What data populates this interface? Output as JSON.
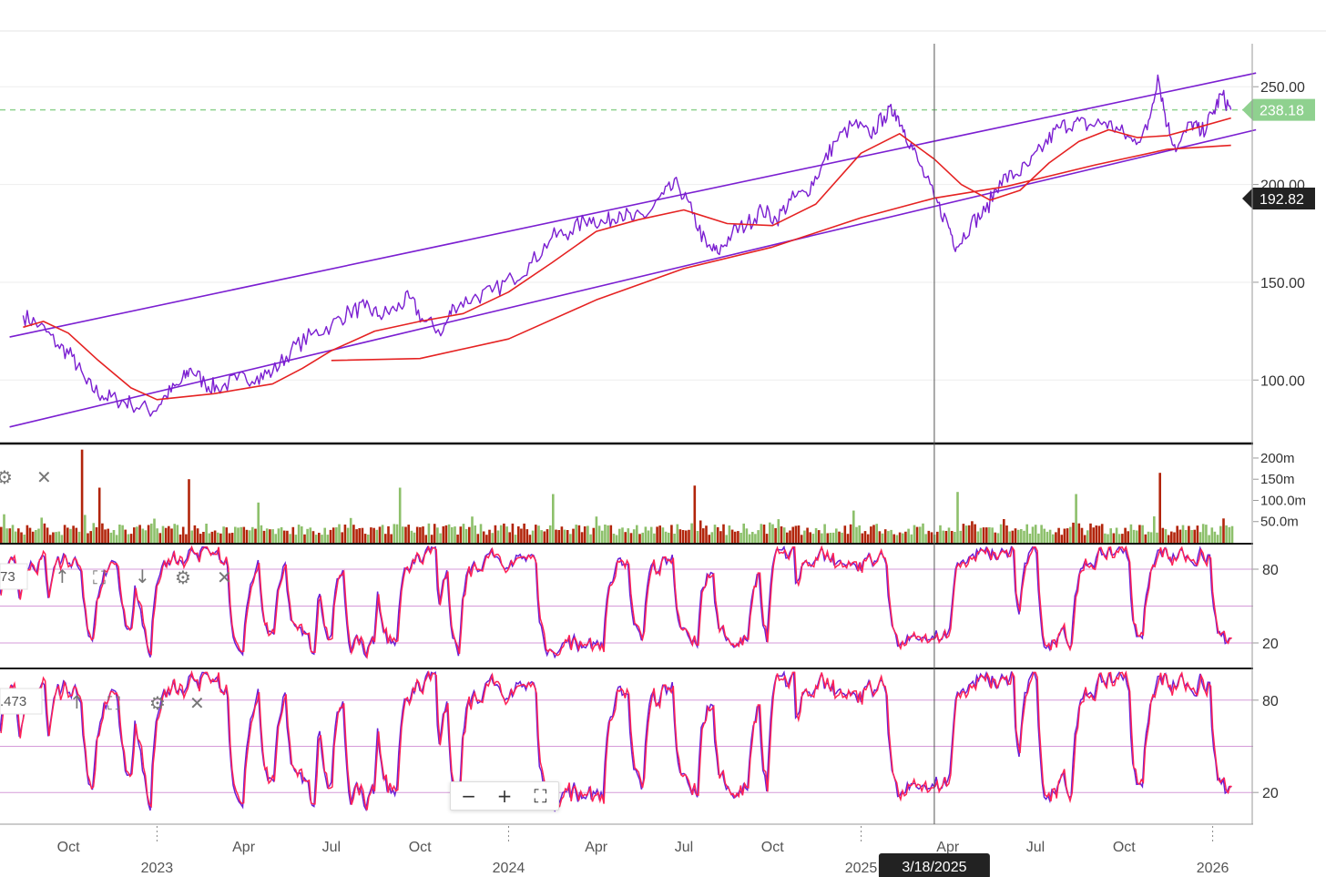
{
  "chart_data": [
    {
      "type": "line",
      "panel": "price",
      "series": [
        {
          "role": "price",
          "color": "#7b1fd1",
          "points": [
            [
              "2022-08-15",
              133
            ],
            [
              "2022-09-01",
              128
            ],
            [
              "2022-09-20",
              118
            ],
            [
              "2022-10-05",
              112
            ],
            [
              "2022-10-20",
              98
            ],
            [
              "2022-11-05",
              92
            ],
            [
              "2022-11-20",
              90
            ],
            [
              "2022-12-05",
              88
            ],
            [
              "2022-12-28",
              84
            ],
            [
              "2023-01-10",
              92
            ],
            [
              "2023-01-25",
              98
            ],
            [
              "2023-02-05",
              106
            ],
            [
              "2023-02-20",
              98
            ],
            [
              "2023-03-05",
              96
            ],
            [
              "2023-03-25",
              100
            ],
            [
              "2023-04-15",
              102
            ],
            [
              "2023-05-01",
              104
            ],
            [
              "2023-05-20",
              115
            ],
            [
              "2023-06-10",
              123
            ],
            [
              "2023-07-01",
              128
            ],
            [
              "2023-07-20",
              135
            ],
            [
              "2023-08-05",
              137
            ],
            [
              "2023-08-20",
              133
            ],
            [
              "2023-09-05",
              136
            ],
            [
              "2023-09-20",
              142
            ],
            [
              "2023-10-05",
              130
            ],
            [
              "2023-10-25",
              125
            ],
            [
              "2023-11-05",
              138
            ],
            [
              "2023-11-25",
              142
            ],
            [
              "2023-12-15",
              145
            ],
            [
              "2024-01-05",
              152
            ],
            [
              "2024-01-25",
              160
            ],
            [
              "2024-02-15",
              173
            ],
            [
              "2024-03-05",
              176
            ],
            [
              "2024-03-25",
              183
            ],
            [
              "2024-04-10",
              180
            ],
            [
              "2024-04-25",
              186
            ],
            [
              "2024-05-10",
              182
            ],
            [
              "2024-05-25",
              185
            ],
            [
              "2024-06-10",
              195
            ],
            [
              "2024-06-25",
              200
            ],
            [
              "2024-07-10",
              185
            ],
            [
              "2024-07-25",
              168
            ],
            [
              "2024-08-05",
              165
            ],
            [
              "2024-08-20",
              175
            ],
            [
              "2024-09-05",
              180
            ],
            [
              "2024-09-20",
              187
            ],
            [
              "2024-10-05",
              182
            ],
            [
              "2024-10-20",
              192
            ],
            [
              "2024-11-05",
              196
            ],
            [
              "2024-11-20",
              208
            ],
            [
              "2024-12-05",
              222
            ],
            [
              "2024-12-25",
              231
            ],
            [
              "2025-01-10",
              225
            ],
            [
              "2025-01-25",
              235
            ],
            [
              "2025-02-05",
              238
            ],
            [
              "2025-02-15",
              228
            ],
            [
              "2025-03-01",
              212
            ],
            [
              "2025-03-18",
              193
            ],
            [
              "2025-04-01",
              180
            ],
            [
              "2025-04-10",
              168
            ],
            [
              "2025-04-25",
              180
            ],
            [
              "2025-05-10",
              186
            ],
            [
              "2025-05-25",
              202
            ],
            [
              "2025-06-10",
              205
            ],
            [
              "2025-06-25",
              210
            ],
            [
              "2025-07-10",
              220
            ],
            [
              "2025-07-25",
              229
            ],
            [
              "2025-08-10",
              232
            ],
            [
              "2025-08-25",
              230
            ],
            [
              "2025-09-10",
              232
            ],
            [
              "2025-09-25",
              228
            ],
            [
              "2025-10-10",
              222
            ],
            [
              "2025-10-25",
              228
            ],
            [
              "2025-11-05",
              256
            ],
            [
              "2025-11-15",
              230
            ],
            [
              "2025-11-25",
              218
            ],
            [
              "2025-12-10",
              232
            ],
            [
              "2025-12-20",
              226
            ],
            [
              "2026-01-01",
              236
            ],
            [
              "2026-01-10",
              246
            ],
            [
              "2026-01-20",
              238.18
            ]
          ]
        },
        {
          "role": "ma-short",
          "color": "#e52222",
          "points": [
            [
              "2022-08-15",
              127
            ],
            [
              "2022-09-05",
              130
            ],
            [
              "2022-10-01",
              124
            ],
            [
              "2022-11-01",
              110
            ],
            [
              "2022-12-05",
              96
            ],
            [
              "2023-01-01",
              90
            ],
            [
              "2023-03-01",
              93
            ],
            [
              "2023-05-01",
              98
            ],
            [
              "2023-06-01",
              106
            ],
            [
              "2023-07-01",
              115
            ],
            [
              "2023-08-15",
              125
            ],
            [
              "2023-10-01",
              130
            ],
            [
              "2023-11-15",
              134
            ],
            [
              "2024-01-01",
              145
            ],
            [
              "2024-02-15",
              160
            ],
            [
              "2024-04-01",
              176
            ],
            [
              "2024-05-15",
              182
            ],
            [
              "2024-07-01",
              187
            ],
            [
              "2024-08-15",
              180
            ],
            [
              "2024-10-01",
              179
            ],
            [
              "2024-11-15",
              190
            ],
            [
              "2025-01-01",
              216
            ],
            [
              "2025-02-10",
              226
            ],
            [
              "2025-03-18",
              213
            ],
            [
              "2025-04-15",
              200
            ],
            [
              "2025-05-15",
              192
            ],
            [
              "2025-06-15",
              197
            ],
            [
              "2025-07-15",
              211
            ],
            [
              "2025-08-15",
              222
            ],
            [
              "2025-09-15",
              228
            ],
            [
              "2025-10-15",
              224
            ],
            [
              "2025-11-15",
              225
            ],
            [
              "2025-12-15",
              229
            ],
            [
              "2026-01-20",
              234
            ]
          ]
        },
        {
          "role": "ma-long",
          "color": "#e52222",
          "points": [
            [
              "2023-07-01",
              110
            ],
            [
              "2023-10-01",
              111
            ],
            [
              "2024-01-01",
              121
            ],
            [
              "2024-04-01",
              141
            ],
            [
              "2024-07-01",
              157
            ],
            [
              "2024-10-01",
              168
            ],
            [
              "2025-01-01",
              183
            ],
            [
              "2025-03-18",
              193
            ],
            [
              "2025-06-01",
              199
            ],
            [
              "2025-09-01",
              210
            ],
            [
              "2025-11-15",
              218
            ],
            [
              "2026-01-20",
              220
            ]
          ]
        }
      ],
      "trendlines": [
        {
          "color": "#7b1fd1",
          "from": [
            "2022-08-01",
            122
          ],
          "to": [
            "2026-02-15",
            257
          ]
        },
        {
          "color": "#7b1fd1",
          "from": [
            "2022-08-01",
            76
          ],
          "to": [
            "2026-02-15",
            228
          ]
        }
      ],
      "reference_lines": [
        {
          "value": 238.18,
          "style": "dashed",
          "color": "#8fd18f"
        }
      ],
      "yticks": [
        "250.00",
        "200.00",
        "150.00",
        "100.00"
      ],
      "ylim": [
        68,
        272
      ],
      "value_tags": [
        {
          "label": "238.18",
          "value": 238.18,
          "color": "#8fd18f"
        },
        {
          "label": "192.82",
          "value": 192.82,
          "color": "#222222"
        }
      ],
      "grid": true
    },
    {
      "type": "bar",
      "panel": "volume",
      "yticks": [
        "200m",
        "150m",
        "100.0m",
        "50.0m"
      ],
      "ylim": [
        0,
        230000000
      ],
      "up_color": "#8dc06b",
      "down_color": "#b2250b",
      "spikes": [
        [
          "2022-10-15",
          220000000
        ],
        [
          "2022-11-01",
          130000000
        ],
        [
          "2023-02-01",
          150000000
        ],
        [
          "2023-04-15",
          95000000
        ],
        [
          "2023-09-10",
          130000000
        ],
        [
          "2024-02-15",
          115000000
        ],
        [
          "2024-07-10",
          135000000
        ],
        [
          "2025-04-10",
          120000000
        ],
        [
          "2025-08-10",
          115000000
        ],
        [
          "2025-11-05",
          165000000
        ]
      ]
    },
    {
      "type": "line",
      "panel": "oscillator-1",
      "yticks": [
        "80",
        "20"
      ],
      "ylim": [
        0,
        100
      ],
      "levels": [
        80,
        50,
        20
      ],
      "header_value": "73",
      "series_colors": [
        "#6a1fd6",
        "#ff2255"
      ]
    },
    {
      "type": "line",
      "panel": "oscillator-2",
      "yticks": [
        "80",
        "20"
      ],
      "ylim": [
        0,
        100
      ],
      "levels": [
        80,
        50,
        20
      ],
      "header_value": ".473",
      "series_colors": [
        "#6a1fd6",
        "#ff2255"
      ]
    }
  ],
  "x_axis": {
    "domain": [
      "2022-07-22",
      "2026-02-12"
    ],
    "month_ticks": [
      {
        "label": "Oct",
        "date": "2022-10-01"
      },
      {
        "label": "Apr",
        "date": "2023-04-01"
      },
      {
        "label": "Jul",
        "date": "2023-07-01"
      },
      {
        "label": "Oct",
        "date": "2023-10-01"
      },
      {
        "label": "Apr",
        "date": "2024-04-01"
      },
      {
        "label": "Jul",
        "date": "2024-07-01"
      },
      {
        "label": "Oct",
        "date": "2024-10-01"
      },
      {
        "label": "Apr",
        "date": "2025-04-01"
      },
      {
        "label": "Jul",
        "date": "2025-07-01"
      },
      {
        "label": "Oct",
        "date": "2025-10-01"
      }
    ],
    "year_ticks": [
      {
        "label": "2023",
        "date": "2023-01-01"
      },
      {
        "label": "2024",
        "date": "2024-01-01"
      },
      {
        "label": "2025",
        "date": "2025-01-01"
      },
      {
        "label": "2026",
        "date": "2026-01-01"
      }
    ]
  },
  "crosshair": {
    "date": "2025-03-18",
    "label": "3/18/2025"
  },
  "controls": {
    "zoom_out": "−",
    "zoom_in": "+",
    "fit": "⛶",
    "settings": "⚙",
    "close": "✕",
    "move_up": "↑",
    "move_down": "↓",
    "maximize": "⛶"
  }
}
